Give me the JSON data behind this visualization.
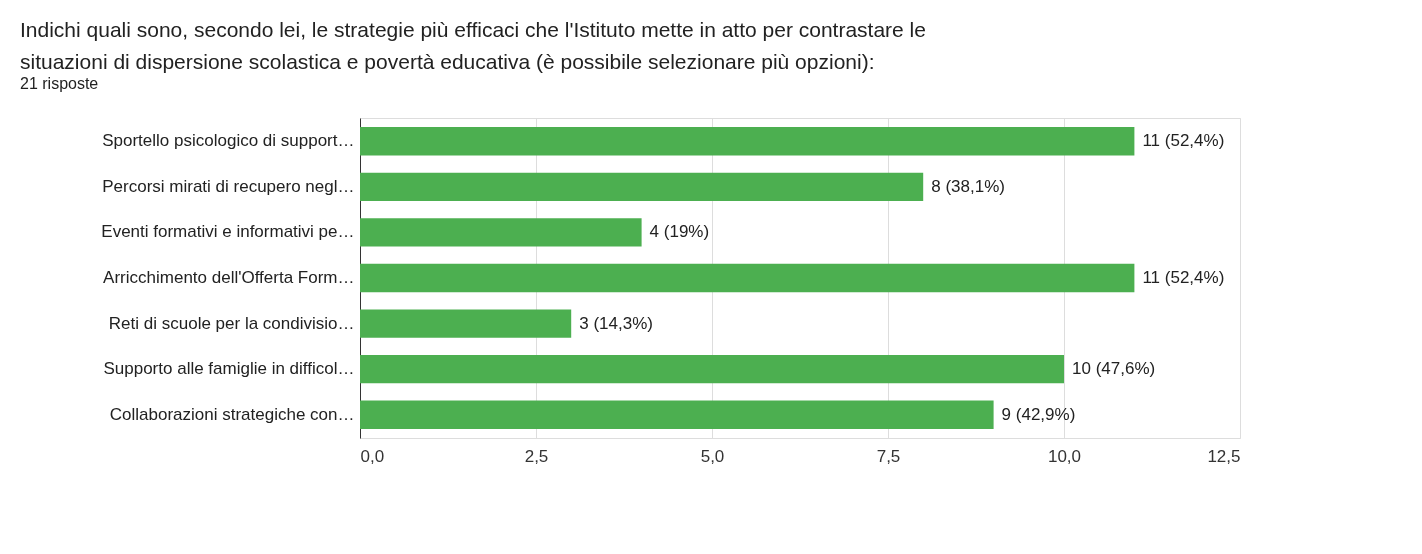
{
  "chart_data": {
    "type": "bar",
    "orientation": "horizontal",
    "title": "Indichi quali sono, secondo lei, le strategie più efficaci che l'Istituto mette in atto per contrastare le situazioni di dispersione scolastica e povertà educativa (è possibile selezionare più opzioni):",
    "subtitle": "21 risposte",
    "categories": [
      "Sportello psicologico di support…",
      "Percorsi mirati di recupero negl…",
      "Eventi formativi e informativi pe…",
      "Arricchimento dell'Offerta Form…",
      "Reti di scuole per la condivisio…",
      "Supporto alle famiglie in difficol…",
      "Collaborazioni strategiche con…"
    ],
    "values": [
      11,
      8,
      4,
      11,
      3,
      10,
      9
    ],
    "value_labels": [
      "11 (52,4%)",
      "8 (38,1%)",
      "4 (19%)",
      "11 (52,4%)",
      "3 (14,3%)",
      "10 (47,6%)",
      "9 (42,9%)"
    ],
    "color": "#4caf50",
    "xlim": [
      0,
      12.5
    ],
    "xticks": [
      {
        "value": 0,
        "label": "0,0"
      },
      {
        "value": 2.5,
        "label": "2,5"
      },
      {
        "value": 5,
        "label": "5,0"
      },
      {
        "value": 7.5,
        "label": "7,5"
      },
      {
        "value": 10,
        "label": "10,0"
      },
      {
        "value": 12.5,
        "label": "12,5"
      }
    ],
    "grid": "x"
  }
}
